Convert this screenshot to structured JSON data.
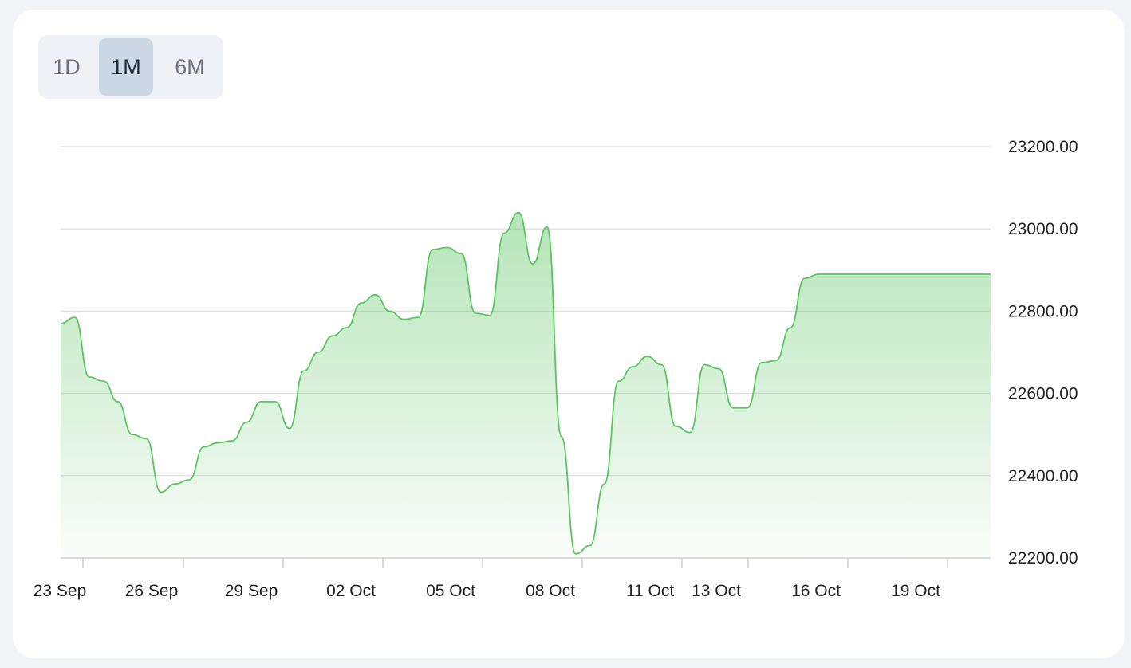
{
  "range_selector": {
    "options": [
      "1D",
      "1M",
      "6M"
    ],
    "selected": "1M"
  },
  "colors": {
    "line": "#5ac561",
    "fill_top": "#5ac561",
    "grid": "#e3e3e3",
    "active_button": "#cdd8e6"
  },
  "chart_data": {
    "type": "area",
    "title": "",
    "xlabel": "",
    "ylabel": "",
    "ylim": [
      22200,
      23200
    ],
    "y_ticks": [
      "23200.00",
      "23000.00",
      "22800.00",
      "22600.00",
      "22400.00",
      "22200.00"
    ],
    "x_ticks": [
      "23 Sep",
      "26 Sep",
      "29 Sep",
      "02 Oct",
      "05 Oct",
      "08 Oct",
      "11 Oct",
      "13 Oct",
      "16 Oct",
      "19 Oct"
    ],
    "x_range": [
      "2023-09-23",
      "2023-10-21"
    ],
    "grid": true,
    "series": [
      {
        "x": [
          "2023-09-23",
          "2023-09-23",
          "2023-09-24",
          "2023-09-24",
          "2023-09-24",
          "2023-09-25",
          "2023-09-25",
          "2023-09-26",
          "2023-09-26",
          "2023-09-26",
          "2023-09-27",
          "2023-09-27",
          "2023-09-27",
          "2023-09-28",
          "2023-09-28",
          "2023-09-29",
          "2023-09-30",
          "2023-10-01",
          "2023-10-01",
          "2023-10-01",
          "2023-10-02",
          "2023-10-02",
          "2023-10-02",
          "2023-10-03",
          "2023-10-03",
          "2023-10-03",
          "2023-10-04",
          "2023-10-04",
          "2023-10-04",
          "2023-10-05",
          "2023-10-06",
          "2023-10-07",
          "2023-10-07",
          "2023-10-08",
          "2023-10-08",
          "2023-10-08",
          "2023-10-09",
          "2023-10-09",
          "2023-10-09",
          "2023-10-10",
          "2023-10-10",
          "2023-10-10",
          "2023-10-11",
          "2023-10-11",
          "2023-10-11",
          "2023-10-12",
          "2023-10-12",
          "2023-10-13",
          "2023-10-13",
          "2023-10-14",
          "2023-10-14",
          "2023-10-14",
          "2023-10-15",
          "2023-10-15",
          "2023-10-15",
          "2023-10-16",
          "2023-10-16",
          "2023-10-16",
          "2023-10-17",
          "2023-10-17",
          "2023-10-17",
          "2023-10-18",
          "2023-10-18",
          "2023-10-19",
          "2023-10-20",
          "2023-10-21"
        ],
        "y": [
          22770,
          22785,
          22640,
          22630,
          22580,
          22500,
          22490,
          22360,
          22380,
          22390,
          22470,
          22480,
          22485,
          22530,
          22580,
          22580,
          22515,
          22655,
          22700,
          22740,
          22760,
          22820,
          22840,
          22800,
          22780,
          22785,
          22950,
          22955,
          22940,
          22795,
          22790,
          22990,
          23040,
          22915,
          23005,
          22495,
          22210,
          22230,
          22380,
          22630,
          22665,
          22690,
          22670,
          22520,
          22505,
          22670,
          22660,
          22565,
          22565,
          22675,
          22680,
          22760,
          22880,
          22890,
          22890,
          22890,
          22890,
          22890,
          22890,
          22890,
          22890,
          22890,
          22890,
          22890,
          22890,
          22890
        ]
      }
    ]
  }
}
